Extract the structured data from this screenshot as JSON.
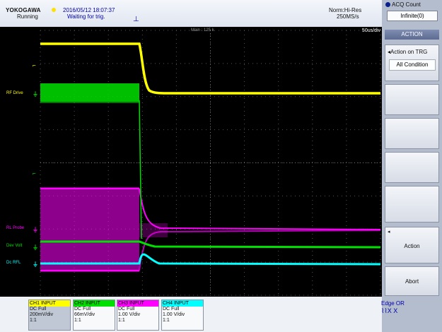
{
  "header": {
    "brand": "YOKOGAWA",
    "run_state": "Running",
    "datetime": "2016/05/12 18:07:37",
    "trigger_status": "Waiting for trig.",
    "acq_mode": "Norm:Hi-Res",
    "sample_rate": "250MS/s"
  },
  "display": {
    "main_label": "Main : 125 k",
    "time_div": "50us/div",
    "labels": {
      "rf_drive": "RF Drive",
      "rl_probe": "RL Probe",
      "dev_volt": "Dev Volt",
      "dc_rfl": "Dc RFL"
    }
  },
  "right_panel": {
    "acq_count_title": "ACQ Count",
    "acq_count_value": "Infinite(0)",
    "action_title": "ACTION",
    "action_on_trg_title": "Action on TRG",
    "action_on_trg_value": "All Condition",
    "action_button": "Action",
    "abort_button": "Abort"
  },
  "channels": [
    {
      "header": "CH1 INPUT",
      "coupling": "DC Full",
      "scale": "200mV/div",
      "probe": "1:1",
      "color": "#ffff00"
    },
    {
      "header": "CH2 INPUT",
      "coupling": "DC Full",
      "scale": "66mV/div",
      "probe": "1:1",
      "color": "#00e000"
    },
    {
      "header": "CH3 INPUT",
      "coupling": "DC Full",
      "scale": "1.00 V/div",
      "probe": "1:1",
      "color": "#ff00ff"
    },
    {
      "header": "CH4 INPUT",
      "coupling": "DC Full",
      "scale": "1.00 V/div",
      "probe": "1:1",
      "color": "#00ffff"
    }
  ],
  "trigger_info": {
    "type": "Edge OR",
    "symbols": "⌇⌇X X"
  },
  "colors": {
    "ch1": "#ffff00",
    "ch2": "#00e000",
    "ch3": "#ff00ff",
    "ch4": "#00ffff",
    "grid": "#555555"
  }
}
